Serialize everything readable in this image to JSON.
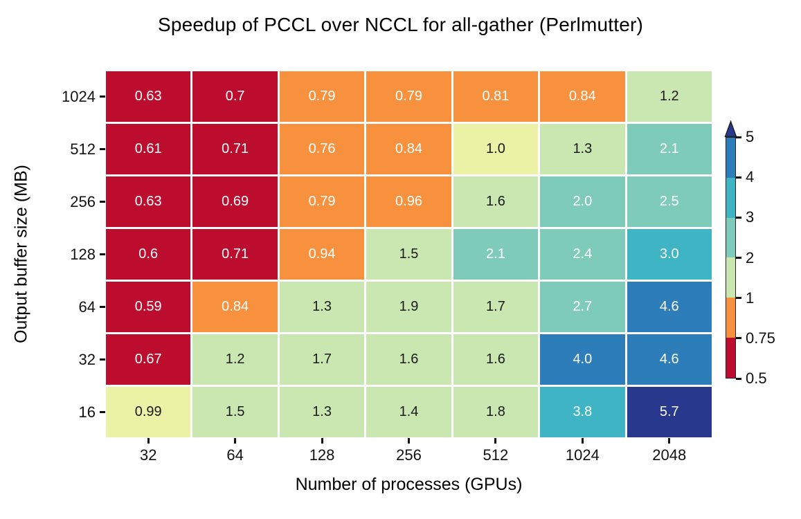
{
  "chart_data": {
    "type": "heatmap",
    "title": "Speedup of PCCL over NCCL for all-gather (Perlmutter)",
    "xlabel": "Number of processes (GPUs)",
    "ylabel": "Output buffer size (MB)",
    "x_tick_labels": [
      "32",
      "64",
      "128",
      "256",
      "512",
      "1024",
      "2048"
    ],
    "y_tick_labels": [
      "1024",
      "512",
      "256",
      "128",
      "64",
      "32",
      "16"
    ],
    "values": [
      [
        0.63,
        0.7,
        0.79,
        0.79,
        0.81,
        0.84,
        1.2
      ],
      [
        0.61,
        0.71,
        0.76,
        0.84,
        1.0,
        1.3,
        2.1
      ],
      [
        0.63,
        0.69,
        0.79,
        0.96,
        1.6,
        2.0,
        2.5
      ],
      [
        0.6,
        0.71,
        0.94,
        1.5,
        2.1,
        2.4,
        3.0
      ],
      [
        0.59,
        0.84,
        1.3,
        1.9,
        1.7,
        2.7,
        4.6
      ],
      [
        0.67,
        1.2,
        1.7,
        1.6,
        1.6,
        4.0,
        4.6
      ],
      [
        0.99,
        1.5,
        1.3,
        1.4,
        1.8,
        3.8,
        5.7
      ]
    ],
    "cell_labels": [
      [
        "0.63",
        "0.7",
        "0.79",
        "0.79",
        "0.81",
        "0.84",
        "1.2"
      ],
      [
        "0.61",
        "0.71",
        "0.76",
        "0.84",
        "1.0",
        "1.3",
        "2.1"
      ],
      [
        "0.63",
        "0.69",
        "0.79",
        "0.96",
        "1.6",
        "2.0",
        "2.5"
      ],
      [
        "0.6",
        "0.71",
        "0.94",
        "1.5",
        "2.1",
        "2.4",
        "3.0"
      ],
      [
        "0.59",
        "0.84",
        "1.3",
        "1.9",
        "1.7",
        "2.7",
        "4.6"
      ],
      [
        "0.67",
        "1.2",
        "1.7",
        "1.6",
        "1.6",
        "4.0",
        "4.6"
      ],
      [
        "0.99",
        "1.5",
        "1.3",
        "1.4",
        "1.8",
        "3.8",
        "5.7"
      ]
    ],
    "grid": "white gridlines between cells",
    "legend_position": "colorbar right",
    "colorbar": {
      "tick_labels_top_to_bottom": [
        "5",
        "4",
        "3",
        "2",
        "1",
        "0.75",
        "0.5"
      ],
      "extend": "max",
      "band_colors_bottom_to_top": [
        "#bc0d2f",
        "#f8913e",
        "#cbe7b1",
        "#7ecbb9",
        "#3eb4c5",
        "#2d7dbb"
      ],
      "over_color": "#28388c"
    },
    "palette": {
      "red": "#bc0d2f",
      "orange": "#f8913e",
      "pale_yellow": "#ecf2a5",
      "light_green": "#cbe7b1",
      "teal_green": "#7ecbb9",
      "cyan": "#3eb4c5",
      "blue": "#2d7dbb",
      "navy": "#28388c",
      "text_dark": "#1a1a1a",
      "text_light": "#ffffff",
      "tick_color": "#111111"
    }
  }
}
